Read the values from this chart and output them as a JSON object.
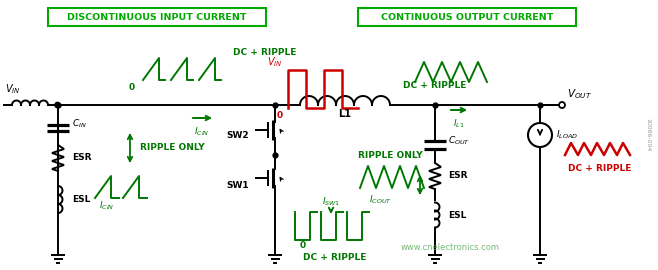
{
  "bg_color": "#ffffff",
  "black": "#000000",
  "green": "#007700",
  "red": "#cc0000",
  "box_green": "#00aa00",
  "watermark_green": "#55aa55",
  "figsize": [
    6.58,
    2.7
  ],
  "dpi": 100,
  "title_disc": "DISCONTINUOUS INPUT CURRENT",
  "title_cont": "CONTINUOUS OUTPUT CURRENT",
  "watermark": "www.cnelectronics.com",
  "code": "10086-004"
}
